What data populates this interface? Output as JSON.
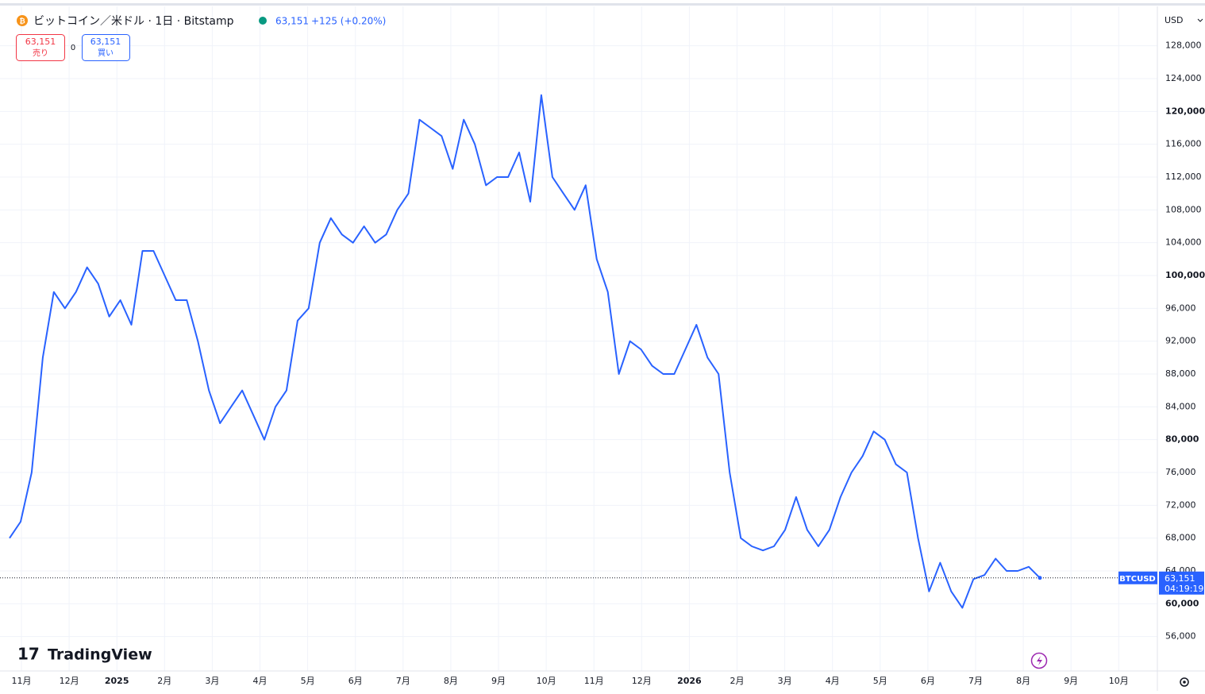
{
  "header": {
    "title": "ビットコイン／米ドル · 1日 · Bitstamp",
    "price": "63,151",
    "change": "+125 (+0.20%)",
    "sell_price": "63,151",
    "sell_label": "売り",
    "spread": "0",
    "buy_price": "63,151",
    "buy_label": "買い",
    "currency": "USD",
    "logo": "TradingView"
  },
  "chart_data": {
    "type": "line",
    "series": [
      {
        "name": "BTCUSD",
        "color": "#2962ff",
        "values": [
          68000,
          70000,
          76000,
          90000,
          98000,
          96000,
          98000,
          101000,
          99000,
          95000,
          97000,
          94000,
          103000,
          103000,
          100000,
          97000,
          97000,
          92000,
          86000,
          82000,
          84000,
          86000,
          83000,
          80000,
          84000,
          86000,
          94500,
          96000,
          104000,
          107000,
          105000,
          104000,
          106000,
          104000,
          105000,
          108000,
          110000,
          119000,
          118000,
          117000,
          113000,
          119000,
          116000,
          111000,
          112000,
          112000,
          115000,
          109000,
          122000,
          112000,
          110000,
          108000,
          111000,
          102000,
          98000,
          88000,
          92000,
          91000,
          89000,
          88000,
          88000,
          91000,
          94000,
          90000,
          88000,
          76000,
          68000,
          67000,
          66500,
          67000,
          69000,
          73000,
          69000,
          67000,
          69000,
          73000,
          76000,
          78000,
          81000,
          80000,
          77000,
          76000,
          68000,
          61500,
          65000,
          61500,
          59500,
          63000,
          63500,
          65500,
          64000,
          64000,
          64500,
          63151
        ]
      }
    ],
    "last_value": 63151,
    "last_label": "63,151",
    "countdown": "04:19:19",
    "ylim": [
      52000,
      133000
    ],
    "yticks": [
      {
        "value": 56000,
        "label": "56,000"
      },
      {
        "value": 60000,
        "label": "60,000"
      },
      {
        "value": 64000,
        "label": "64,000"
      },
      {
        "value": 68000,
        "label": "68,000"
      },
      {
        "value": 72000,
        "label": "72,000"
      },
      {
        "value": 76000,
        "label": "76,000"
      },
      {
        "value": 80000,
        "label": "80,000"
      },
      {
        "value": 84000,
        "label": "84,000"
      },
      {
        "value": 88000,
        "label": "88,000"
      },
      {
        "value": 92000,
        "label": "92,000"
      },
      {
        "value": 96000,
        "label": "96,000"
      },
      {
        "value": 100000,
        "label": "100,000"
      },
      {
        "value": 104000,
        "label": "104,000"
      },
      {
        "value": 108000,
        "label": "108,000"
      },
      {
        "value": 112000,
        "label": "112,000"
      },
      {
        "value": 116000,
        "label": "116,000"
      },
      {
        "value": 120000,
        "label": "120,000"
      },
      {
        "value": 124000,
        "label": "124,000"
      },
      {
        "value": 128000,
        "label": "128,000"
      }
    ],
    "xtick_labels": [
      "11月",
      "12月",
      "2025",
      "2月",
      "3月",
      "4月",
      "5月",
      "6月",
      "7月",
      "8月",
      "9月",
      "10月",
      "11月",
      "12月",
      "2026",
      "2月",
      "3月",
      "4月",
      "5月",
      "6月",
      "7月",
      "8月",
      "9月",
      "10月"
    ],
    "grid": true
  }
}
